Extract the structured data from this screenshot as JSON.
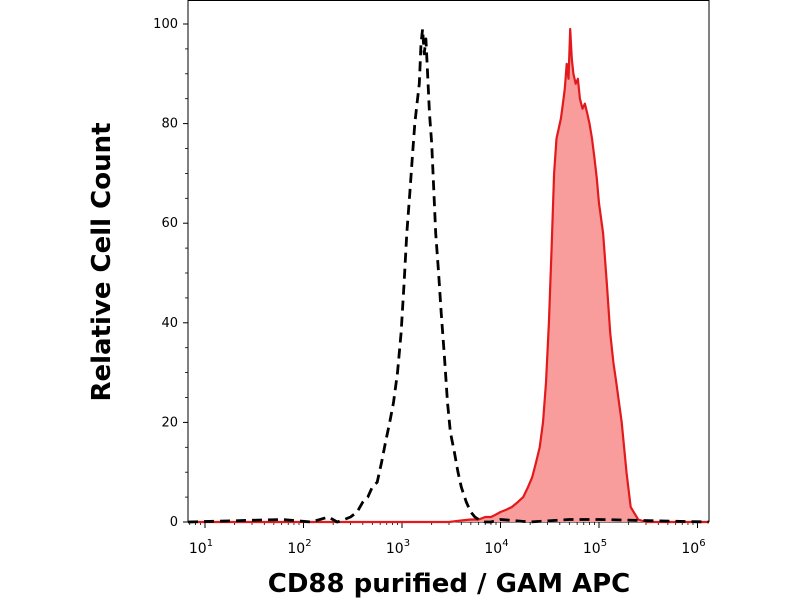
{
  "chart_data": {
    "type": "area",
    "title": "",
    "xlabel": "CD88 purified / GAM APC",
    "ylabel": "Relative Cell Count",
    "xscale": "log",
    "xlim": [
      5,
      1300000
    ],
    "ylim": [
      -1,
      101
    ],
    "yticks": [
      {
        "value": 0,
        "label": "0"
      },
      {
        "value": 20,
        "label": "20"
      },
      {
        "value": 40,
        "label": "40"
      },
      {
        "value": 60,
        "label": "60"
      },
      {
        "value": 80,
        "label": "80"
      },
      {
        "value": 100,
        "label": "100"
      }
    ],
    "xticks": [
      {
        "value": 10,
        "base": "10",
        "exp": "1"
      },
      {
        "value": 100,
        "base": "10",
        "exp": "2"
      },
      {
        "value": 1000,
        "base": "10",
        "exp": "3"
      },
      {
        "value": 10000,
        "base": "10",
        "exp": "4"
      },
      {
        "value": 100000,
        "base": "10",
        "exp": "5"
      },
      {
        "value": 1000000,
        "base": "10",
        "exp": "6"
      }
    ],
    "grid": false,
    "series": [
      {
        "style": "dashed-outline",
        "color": "#000000",
        "x": [
          5,
          60,
          120,
          180,
          220,
          260,
          300,
          350,
          400,
          450,
          500,
          560,
          620,
          680,
          750,
          820,
          900,
          980,
          1050,
          1120,
          1200,
          1280,
          1350,
          1420,
          1500,
          1560,
          1620,
          1680,
          1750,
          1820,
          1900,
          2000,
          2100,
          2200,
          2350,
          2500,
          2700,
          2900,
          3100,
          3400,
          3700,
          4000,
          4500,
          5000,
          5500,
          6000,
          7000,
          8000,
          10000,
          20000,
          50000,
          100000,
          1300000
        ],
        "y": [
          0,
          0.5,
          0,
          1,
          0,
          0.5,
          1,
          2,
          4,
          5,
          7,
          8,
          12,
          16,
          20,
          24,
          30,
          38,
          48,
          58,
          66,
          74,
          80,
          84,
          88,
          96,
          99,
          94,
          97,
          90,
          82,
          76,
          67,
          58,
          50,
          42,
          33,
          24,
          18,
          14,
          10,
          7,
          4,
          2,
          1,
          0.5,
          0,
          0,
          0.5,
          0,
          0.5,
          0.5,
          0
        ]
      },
      {
        "style": "filled",
        "color": "#e31a1c",
        "fill": "#f89c9c",
        "x": [
          5,
          3000,
          4000,
          5000,
          6000,
          7000,
          8000,
          9000,
          10000,
          11500,
          13000,
          15000,
          17000,
          19000,
          21000,
          23000,
          25000,
          27000,
          29000,
          31000,
          33000,
          35000,
          37000,
          39000,
          41000,
          43000,
          45000,
          47000,
          49000,
          51000,
          53000,
          55000,
          58000,
          61000,
          64000,
          68000,
          72000,
          76000,
          80000,
          85000,
          90000,
          95000,
          100000,
          110000,
          120000,
          130000,
          140000,
          150000,
          170000,
          190000,
          210000,
          250000,
          300000,
          1300000
        ],
        "y": [
          0,
          0,
          0.3,
          0.5,
          0.5,
          1,
          1,
          1.5,
          2,
          2.5,
          3,
          4,
          5,
          7,
          9,
          12,
          15,
          20,
          28,
          40,
          55,
          70,
          77,
          79,
          81,
          84,
          87,
          92,
          89,
          99,
          93,
          90,
          88,
          89,
          85,
          83,
          84,
          82,
          80,
          77,
          73,
          69,
          64,
          58,
          48,
          38,
          32,
          28,
          20,
          10,
          3,
          0.5,
          0,
          0
        ]
      }
    ]
  }
}
